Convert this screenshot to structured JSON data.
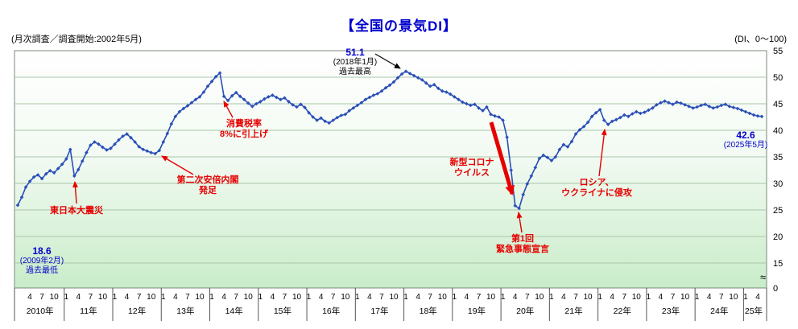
{
  "header": {
    "survey_note": "(月次調査／調査開始:2002年5月)",
    "title": "【全国の景気DI】",
    "di_range": "(DI、0〜100)"
  },
  "annotations": {
    "past_low": {
      "value": "18.6",
      "date": "(2009年2月)",
      "note": "過去最低"
    },
    "earthquake": {
      "text": "東日本大震災"
    },
    "abe": {
      "line1": "第二次安倍内閣",
      "line2": "発足"
    },
    "tax": {
      "line1": "消費税率",
      "line2": "8%に引上げ"
    },
    "record_high": {
      "value": "51.1",
      "date": "(2018年1月)",
      "note": "過去最高"
    },
    "covid": {
      "line1": "新型コロナ",
      "line2": "ウイルス"
    },
    "emergency": {
      "line1": "第1回",
      "line2": "緊急事態宣言"
    },
    "russia": {
      "line1": "ロシア、",
      "line2": "ウクライナに侵攻"
    },
    "latest": {
      "value": "42.6",
      "date": "(2025年5月)"
    }
  },
  "colors": {
    "line": "#2a4fb8",
    "title_blue": "#0000cc",
    "annotation_red": "#e60000",
    "grid": "#a9c6a9"
  },
  "chart_data": {
    "type": "line",
    "title": "【全国の景気DI】",
    "unit": "DI (0-100)",
    "frequency": "monthly",
    "x_start": "2010-01",
    "x_end": "2025-05",
    "y_ticks": [
      0,
      15,
      20,
      25,
      30,
      35,
      40,
      45,
      50,
      55
    ],
    "y_axis_break": "≈",
    "month_tick_months": [
      1,
      4,
      7,
      10
    ],
    "year_labels": [
      "2010年",
      "11年",
      "12年",
      "13年",
      "14年",
      "15年",
      "16年",
      "17年",
      "18年",
      "19年",
      "20年",
      "21年",
      "22年",
      "23年",
      "24年",
      "25年"
    ],
    "notable_points": {
      "record_low": {
        "date": "2009-02",
        "value": 18.6
      },
      "record_high": {
        "date": "2018-01",
        "value": 51.1
      },
      "latest": {
        "date": "2025-05",
        "value": 42.6
      }
    },
    "series": [
      {
        "name": "全国の景気DI",
        "values": [
          25.9,
          27.4,
          29.3,
          30.4,
          31.2,
          31.6,
          30.9,
          31.8,
          32.4,
          32.0,
          32.8,
          33.6,
          34.6,
          36.4,
          31.4,
          32.6,
          34.2,
          35.8,
          37.2,
          37.8,
          37.4,
          36.8,
          36.3,
          36.6,
          37.4,
          38.2,
          38.9,
          39.3,
          38.6,
          37.8,
          36.9,
          36.4,
          36.1,
          35.8,
          35.6,
          36.2,
          37.8,
          39.4,
          41.2,
          42.6,
          43.5,
          44.1,
          44.6,
          45.2,
          45.8,
          46.3,
          47.2,
          48.3,
          49.2,
          50.1,
          50.8,
          46.4,
          45.6,
          46.5,
          47.1,
          46.4,
          45.8,
          45.1,
          44.5,
          45.0,
          45.4,
          45.9,
          46.3,
          46.6,
          46.2,
          45.8,
          46.1,
          45.4,
          44.8,
          44.4,
          44.9,
          44.3,
          43.3,
          42.5,
          41.9,
          42.3,
          41.7,
          41.4,
          41.9,
          42.4,
          42.8,
          43.0,
          43.7,
          44.2,
          44.7,
          45.2,
          45.8,
          46.2,
          46.6,
          46.9,
          47.4,
          48.0,
          48.5,
          49.1,
          49.9,
          50.6,
          51.1,
          50.7,
          50.3,
          49.9,
          49.5,
          48.9,
          48.3,
          48.6,
          47.9,
          47.4,
          47.2,
          46.8,
          46.3,
          45.8,
          45.3,
          45.0,
          44.7,
          44.9,
          44.2,
          43.7,
          44.4,
          43.0,
          42.7,
          42.5,
          41.9,
          38.7,
          32.5,
          25.8,
          25.3,
          27.9,
          29.9,
          31.4,
          33.0,
          34.7,
          35.3,
          34.9,
          34.3,
          35.0,
          36.4,
          37.3,
          36.9,
          37.9,
          39.3,
          40.1,
          40.7,
          41.5,
          42.6,
          43.3,
          43.9,
          41.9,
          41.1,
          41.7,
          42.0,
          42.4,
          42.9,
          42.6,
          43.1,
          43.5,
          43.2,
          43.4,
          43.8,
          44.2,
          44.8,
          45.2,
          45.5,
          45.2,
          44.9,
          45.3,
          45.1,
          44.8,
          44.5,
          44.2,
          44.4,
          44.7,
          44.9,
          44.5,
          44.2,
          44.4,
          44.7,
          44.9,
          44.5,
          44.3,
          44.1,
          43.8,
          43.5,
          43.2,
          42.9,
          42.7,
          42.6
        ]
      }
    ]
  }
}
